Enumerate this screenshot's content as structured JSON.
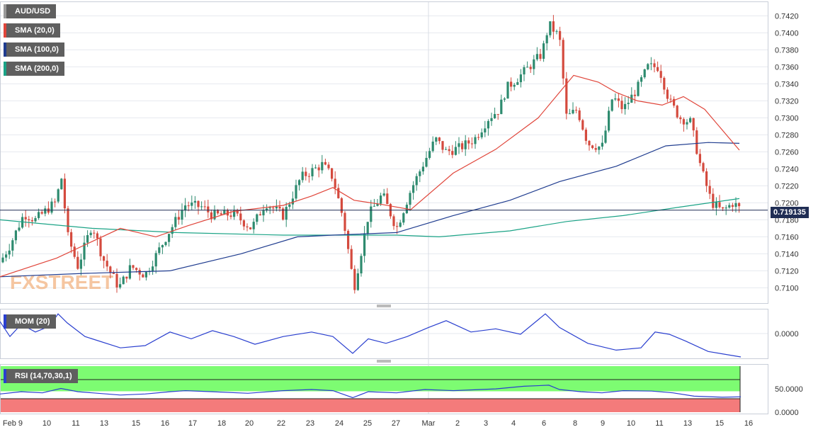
{
  "chart_data": {
    "type": "candlestick",
    "symbol": "AUD/USD",
    "last_price": "0.719135",
    "price_axis_ticks": [
      "0.7420",
      "0.7400",
      "0.7380",
      "0.7360",
      "0.7340",
      "0.7320",
      "0.7300",
      "0.7280",
      "0.7260",
      "0.7240",
      "0.7220",
      "0.7200",
      "0.7180",
      "0.7160",
      "0.7140",
      "0.7120",
      "0.7100"
    ],
    "ylim": [
      0.7082,
      0.7437
    ],
    "x_labels": [
      "Feb 9",
      "10",
      "11",
      "13",
      "15",
      "16",
      "17",
      "18",
      "20",
      "22",
      "23",
      "24",
      "25",
      "27",
      "Mar",
      "2",
      "3",
      "4",
      "6",
      "8",
      "9",
      "10",
      "11",
      "13",
      "15",
      "16"
    ],
    "indicators": {
      "sma20": {
        "label": "SMA (20,0)",
        "color": "#e0453a"
      },
      "sma100": {
        "label": "SMA (100,0)",
        "color": "#1f3c8f"
      },
      "sma200": {
        "label": "SMA (200,0)",
        "color": "#1aa386"
      }
    },
    "mom": {
      "label": "MOM (20)",
      "tick": "0.0000",
      "color": "#2a3fcf"
    },
    "rsi": {
      "label": "RSI (14,70,30,1)",
      "ticks": [
        "50.0000",
        "0.0000"
      ],
      "upper_band": 70,
      "lower_band": 30,
      "color": "#2a3fcf"
    },
    "watermark": "FXSTREET",
    "colors": {
      "up": "#2e8b6f",
      "down": "#d44a3e",
      "grid": "#e6e9ef",
      "axis_text": "#333333",
      "price_line": "#1f2d54"
    },
    "waypoints": [
      [
        0,
        0.713
      ],
      [
        14,
        0.715
      ],
      [
        34,
        0.7187
      ],
      [
        50,
        0.718
      ],
      [
        80,
        0.7202
      ],
      [
        86,
        0.7235
      ],
      [
        96,
        0.716
      ],
      [
        110,
        0.7125
      ],
      [
        130,
        0.7175
      ],
      [
        145,
        0.7135
      ],
      [
        168,
        0.71
      ],
      [
        185,
        0.7125
      ],
      [
        205,
        0.7115
      ],
      [
        238,
        0.7165
      ],
      [
        262,
        0.7198
      ],
      [
        286,
        0.7195
      ],
      [
        300,
        0.7185
      ],
      [
        330,
        0.7187
      ],
      [
        355,
        0.717
      ],
      [
        375,
        0.72
      ],
      [
        400,
        0.7185
      ],
      [
        425,
        0.723
      ],
      [
        455,
        0.7245
      ],
      [
        470,
        0.723
      ],
      [
        485,
        0.718
      ],
      [
        500,
        0.71
      ],
      [
        520,
        0.7185
      ],
      [
        540,
        0.721
      ],
      [
        560,
        0.717
      ],
      [
        580,
        0.7215
      ],
      [
        600,
        0.725
      ],
      [
        615,
        0.7275
      ],
      [
        630,
        0.726
      ],
      [
        650,
        0.7265
      ],
      [
        670,
        0.7275
      ],
      [
        690,
        0.73
      ],
      [
        705,
        0.731
      ],
      [
        715,
        0.7335
      ],
      [
        735,
        0.735
      ],
      [
        765,
        0.7375
      ],
      [
        775,
        0.741
      ],
      [
        790,
        0.7395
      ],
      [
        800,
        0.73
      ],
      [
        815,
        0.731
      ],
      [
        830,
        0.727
      ],
      [
        850,
        0.7265
      ],
      [
        865,
        0.7325
      ],
      [
        880,
        0.731
      ],
      [
        900,
        0.7335
      ],
      [
        915,
        0.736
      ],
      [
        930,
        0.736
      ],
      [
        945,
        0.732
      ],
      [
        960,
        0.73
      ],
      [
        975,
        0.7295
      ],
      [
        990,
        0.724
      ],
      [
        1005,
        0.72
      ],
      [
        1020,
        0.719
      ],
      [
        1035,
        0.72
      ],
      [
        1046,
        0.7192
      ]
    ],
    "sma20_path": [
      [
        0,
        0.7113
      ],
      [
        80,
        0.7135
      ],
      [
        170,
        0.717
      ],
      [
        220,
        0.716
      ],
      [
        265,
        0.7173
      ],
      [
        330,
        0.719
      ],
      [
        400,
        0.7197
      ],
      [
        440,
        0.7208
      ],
      [
        470,
        0.7218
      ],
      [
        500,
        0.7203
      ],
      [
        540,
        0.7198
      ],
      [
        580,
        0.7192
      ],
      [
        640,
        0.7235
      ],
      [
        700,
        0.7263
      ],
      [
        760,
        0.73
      ],
      [
        810,
        0.735
      ],
      [
        845,
        0.7342
      ],
      [
        870,
        0.733
      ],
      [
        900,
        0.732
      ],
      [
        935,
        0.7315
      ],
      [
        965,
        0.7325
      ],
      [
        995,
        0.731
      ],
      [
        1044,
        0.7262
      ]
    ],
    "sma100_path": [
      [
        0,
        0.7113
      ],
      [
        120,
        0.7117
      ],
      [
        240,
        0.712
      ],
      [
        340,
        0.714
      ],
      [
        420,
        0.716
      ],
      [
        470,
        0.7162
      ],
      [
        560,
        0.7165
      ],
      [
        640,
        0.7185
      ],
      [
        720,
        0.7203
      ],
      [
        790,
        0.7225
      ],
      [
        870,
        0.7243
      ],
      [
        940,
        0.7267
      ],
      [
        1000,
        0.7271
      ],
      [
        1044,
        0.727
      ]
    ],
    "sma200_path": [
      [
        0,
        0.718
      ],
      [
        130,
        0.717
      ],
      [
        250,
        0.7165
      ],
      [
        400,
        0.7162
      ],
      [
        560,
        0.7162
      ],
      [
        620,
        0.716
      ],
      [
        720,
        0.7167
      ],
      [
        800,
        0.7178
      ],
      [
        880,
        0.7185
      ],
      [
        960,
        0.7195
      ],
      [
        1044,
        0.7205
      ]
    ],
    "mom_path": [
      [
        0,
        0.78
      ],
      [
        14,
        0.45
      ],
      [
        30,
        0.72
      ],
      [
        50,
        0.55
      ],
      [
        70,
        0.68
      ],
      [
        82,
        0.95
      ],
      [
        95,
        0.75
      ],
      [
        120,
        0.45
      ],
      [
        170,
        0.2
      ],
      [
        205,
        0.25
      ],
      [
        240,
        0.55
      ],
      [
        270,
        0.4
      ],
      [
        300,
        0.58
      ],
      [
        330,
        0.45
      ],
      [
        360,
        0.28
      ],
      [
        400,
        0.45
      ],
      [
        440,
        0.55
      ],
      [
        470,
        0.45
      ],
      [
        498,
        0.08
      ],
      [
        520,
        0.4
      ],
      [
        545,
        0.3
      ],
      [
        575,
        0.45
      ],
      [
        605,
        0.65
      ],
      [
        630,
        0.8
      ],
      [
        665,
        0.55
      ],
      [
        700,
        0.62
      ],
      [
        735,
        0.5
      ],
      [
        770,
        0.95
      ],
      [
        790,
        0.65
      ],
      [
        830,
        0.3
      ],
      [
        870,
        0.15
      ],
      [
        905,
        0.2
      ],
      [
        925,
        0.55
      ],
      [
        945,
        0.5
      ],
      [
        968,
        0.35
      ],
      [
        1000,
        0.12
      ],
      [
        1046,
        0.0
      ]
    ],
    "rsi_path": [
      [
        0,
        0.25
      ],
      [
        30,
        0.35
      ],
      [
        60,
        0.3
      ],
      [
        86,
        0.5
      ],
      [
        110,
        0.35
      ],
      [
        170,
        0.2
      ],
      [
        205,
        0.25
      ],
      [
        240,
        0.35
      ],
      [
        262,
        0.4
      ],
      [
        300,
        0.35
      ],
      [
        350,
        0.28
      ],
      [
        400,
        0.4
      ],
      [
        440,
        0.45
      ],
      [
        470,
        0.4
      ],
      [
        498,
        0.08
      ],
      [
        520,
        0.35
      ],
      [
        560,
        0.3
      ],
      [
        600,
        0.45
      ],
      [
        640,
        0.4
      ],
      [
        700,
        0.48
      ],
      [
        740,
        0.6
      ],
      [
        775,
        0.65
      ],
      [
        790,
        0.45
      ],
      [
        820,
        0.35
      ],
      [
        850,
        0.3
      ],
      [
        880,
        0.4
      ],
      [
        920,
        0.38
      ],
      [
        950,
        0.3
      ],
      [
        980,
        0.15
      ],
      [
        1020,
        0.1
      ],
      [
        1046,
        0.12
      ]
    ]
  }
}
